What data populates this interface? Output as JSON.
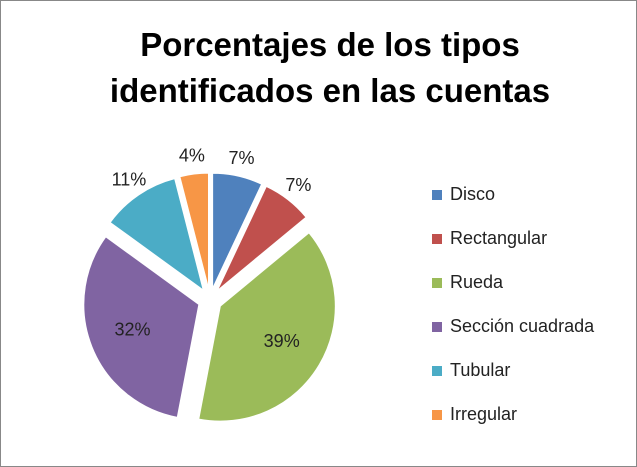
{
  "chart_data": {
    "type": "pie",
    "title": "Porcentajes de los tipos identificados en las cuentas",
    "categories": [
      "Disco",
      "Rectangular",
      "Rueda",
      "Sección cuadrada",
      "Tubular",
      "Irregular"
    ],
    "values": [
      7,
      7,
      39,
      32,
      11,
      4
    ],
    "value_labels": [
      "7%",
      "7%",
      "39%",
      "32%",
      "11%",
      "4%"
    ],
    "colors": [
      "#4f81bd",
      "#c0504d",
      "#9bbb59",
      "#8064a2",
      "#4bacc6",
      "#f79646"
    ],
    "legend": "right"
  }
}
